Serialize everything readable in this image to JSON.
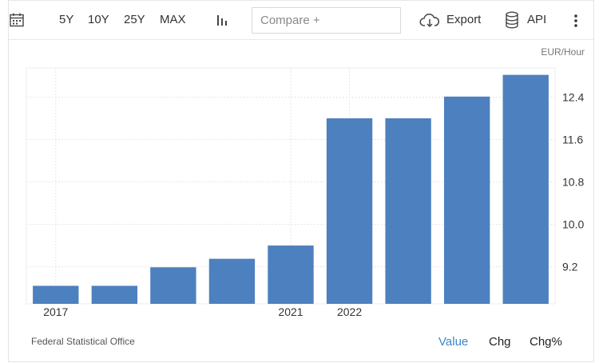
{
  "toolbar": {
    "range_buttons": [
      "5Y",
      "10Y",
      "25Y",
      "MAX"
    ],
    "compare_placeholder": "Compare +",
    "export_label": "Export",
    "api_label": "API",
    "icons": [
      "calendar-icon",
      "bar-chart-icon",
      "cloud-download-icon",
      "database-icon",
      "more-vertical-icon"
    ]
  },
  "chart_data": {
    "type": "bar",
    "unit": "EUR/Hour",
    "x_tick_labels": [
      "2017",
      "",
      "",
      "",
      "2021",
      "2022",
      "",
      "",
      ""
    ],
    "values": [
      8.84,
      8.84,
      9.19,
      9.35,
      9.6,
      12.0,
      12.0,
      12.41,
      12.82
    ],
    "y_ticks": [
      "9.2",
      "10.0",
      "10.8",
      "11.6",
      "12.4"
    ],
    "ylim": [
      8.5,
      12.95
    ],
    "color": "#4d80be",
    "grid": true,
    "y_axis_position": "right"
  },
  "footer": {
    "source": "Federal Statistical Office",
    "modes": [
      "Value",
      "Chg",
      "Chg%"
    ],
    "active_mode": "Value"
  }
}
